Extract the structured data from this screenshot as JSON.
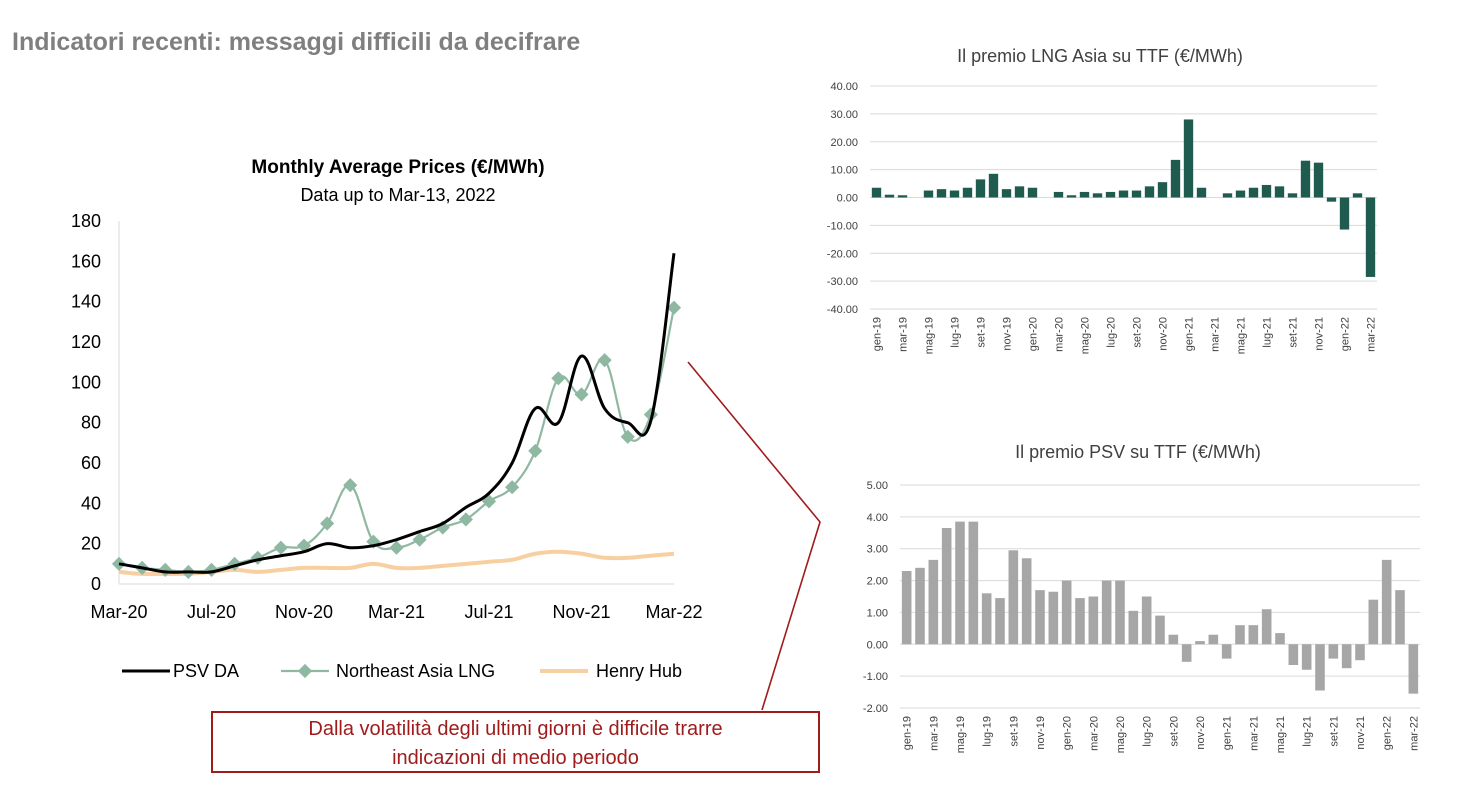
{
  "page_title": "Indicatori recenti: messaggi difficili da decifrare",
  "callout": {
    "line1": "Dalla volatilità degli ultimi giorni è difficile trarre",
    "line2": "indicazioni di medio periodo"
  },
  "colors": {
    "title": "#7f7f7f",
    "callout": "#a01c1c",
    "psv": "#000000",
    "lng": "#8fb8a2",
    "henry": "#f7cfa0",
    "asia_bars": "#1f5c4f",
    "psv_bars": "#a6a6a6"
  },
  "chart_data": [
    {
      "type": "line",
      "title": "Monthly Average Prices (€/MWh)",
      "subtitle": "Data up to Mar-13, 2022",
      "x": [
        "Mar-20",
        "Apr-20",
        "May-20",
        "Jun-20",
        "Jul-20",
        "Aug-20",
        "Sep-20",
        "Oct-20",
        "Nov-20",
        "Dec-20",
        "Jan-21",
        "Feb-21",
        "Mar-21",
        "Apr-21",
        "May-21",
        "Jun-21",
        "Jul-21",
        "Aug-21",
        "Sep-21",
        "Oct-21",
        "Nov-21",
        "Dec-21",
        "Jan-22",
        "Feb-22",
        "Mar-22"
      ],
      "x_tick_labels": [
        "Mar-20",
        "Jul-20",
        "Nov-20",
        "Mar-21",
        "Jul-21",
        "Nov-21",
        "Mar-22"
      ],
      "ylim": [
        0,
        180
      ],
      "y_ticks": [
        0,
        20,
        40,
        60,
        80,
        100,
        120,
        140,
        160,
        180
      ],
      "legend_position": "bottom",
      "series": [
        {
          "name": "PSV DA",
          "values": [
            10,
            8,
            6,
            6,
            6,
            9,
            12,
            14,
            16,
            20,
            18,
            19,
            22,
            26,
            30,
            38,
            45,
            60,
            87,
            80,
            113,
            87,
            80,
            81,
            164
          ]
        },
        {
          "name": "Northeast Asia LNG",
          "values": [
            10,
            8,
            7,
            6,
            7,
            10,
            13,
            18,
            19,
            30,
            49,
            21,
            18,
            22,
            28,
            32,
            41,
            48,
            66,
            102,
            94,
            111,
            73,
            84,
            137
          ]
        },
        {
          "name": "Henry Hub",
          "values": [
            6,
            5,
            5,
            5,
            6,
            7,
            6,
            7,
            8,
            8,
            8,
            10,
            8,
            8,
            9,
            10,
            11,
            12,
            15,
            16,
            15,
            13,
            13,
            14,
            15
          ]
        }
      ]
    },
    {
      "type": "bar",
      "title": "Il premio LNG Asia su TTF (€/MWh)",
      "categories": [
        "gen-19",
        "feb-19",
        "mar-19",
        "apr-19",
        "mag-19",
        "giu-19",
        "lug-19",
        "ago-19",
        "set-19",
        "ott-19",
        "nov-19",
        "dic-19",
        "gen-20",
        "feb-20",
        "mar-20",
        "apr-20",
        "mag-20",
        "giu-20",
        "lug-20",
        "ago-20",
        "set-20",
        "ott-20",
        "nov-20",
        "dic-20",
        "gen-21",
        "feb-21",
        "mar-21",
        "apr-21",
        "mag-21",
        "giu-21",
        "lug-21",
        "ago-21",
        "set-21",
        "ott-21",
        "nov-21",
        "dic-21",
        "gen-22",
        "feb-22",
        "mar-22"
      ],
      "x_tick_labels": [
        "gen-19",
        "mar-19",
        "mag-19",
        "lug-19",
        "set-19",
        "nov-19",
        "gen-20",
        "mar-20",
        "mag-20",
        "lug-20",
        "set-20",
        "nov-20",
        "gen-21",
        "mar-21",
        "mag-21",
        "lug-21",
        "set-21",
        "nov-21",
        "gen-22",
        "mar-22"
      ],
      "values": [
        3.5,
        1.0,
        0.8,
        0,
        2.5,
        3.0,
        2.5,
        3.5,
        6.5,
        8.5,
        3.0,
        4.0,
        3.5,
        0,
        2.0,
        0.8,
        2.0,
        1.5,
        2.0,
        2.5,
        2.5,
        4.0,
        5.5,
        13.5,
        28.0,
        3.5,
        0,
        1.5,
        2.5,
        3.5,
        4.5,
        4.0,
        1.5,
        13.2,
        12.5,
        -1.5,
        -11.5,
        1.5,
        -28.5
      ],
      "ylim": [
        -40,
        40
      ],
      "y_ticks": [
        "40.00",
        "30.00",
        "20.00",
        "10.00",
        "0.00",
        "-10.00",
        "-20.00",
        "-30.00",
        "-40.00"
      ],
      "grid": true
    },
    {
      "type": "bar",
      "title": "Il premio PSV su TTF (€/MWh)",
      "categories": [
        "gen-19",
        "feb-19",
        "mar-19",
        "apr-19",
        "mag-19",
        "giu-19",
        "lug-19",
        "ago-19",
        "set-19",
        "ott-19",
        "nov-19",
        "dic-19",
        "gen-20",
        "feb-20",
        "mar-20",
        "apr-20",
        "mag-20",
        "giu-20",
        "lug-20",
        "ago-20",
        "set-20",
        "ott-20",
        "nov-20",
        "dic-20",
        "gen-21",
        "feb-21",
        "mar-21",
        "apr-21",
        "mag-21",
        "giu-21",
        "lug-21",
        "ago-21",
        "set-21",
        "ott-21",
        "nov-21",
        "dic-21",
        "gen-22",
        "feb-22",
        "mar-22"
      ],
      "x_tick_labels": [
        "gen-19",
        "mar-19",
        "mag-19",
        "lug-19",
        "set-19",
        "nov-19",
        "gen-20",
        "mar-20",
        "mag-20",
        "lug-20",
        "set-20",
        "nov-20",
        "gen-21",
        "mar-21",
        "mag-21",
        "lug-21",
        "set-21",
        "nov-21",
        "gen-22",
        "mar-22"
      ],
      "values": [
        2.3,
        2.4,
        2.65,
        3.65,
        3.85,
        3.85,
        1.6,
        1.45,
        2.95,
        2.7,
        1.7,
        1.65,
        2.0,
        1.45,
        1.5,
        2.0,
        2.0,
        1.05,
        1.5,
        0.9,
        0.3,
        -0.55,
        0.1,
        0.3,
        -0.45,
        0.6,
        0.6,
        1.1,
        0.35,
        -0.65,
        -0.8,
        -1.45,
        -0.45,
        -0.75,
        -0.5,
        1.4,
        2.65,
        1.7,
        -1.55
      ],
      "ylim": [
        -2,
        5
      ],
      "y_ticks": [
        "5.00",
        "4.00",
        "3.00",
        "2.00",
        "1.00",
        "0.00",
        "-1.00",
        "-2.00"
      ],
      "grid": true
    }
  ]
}
